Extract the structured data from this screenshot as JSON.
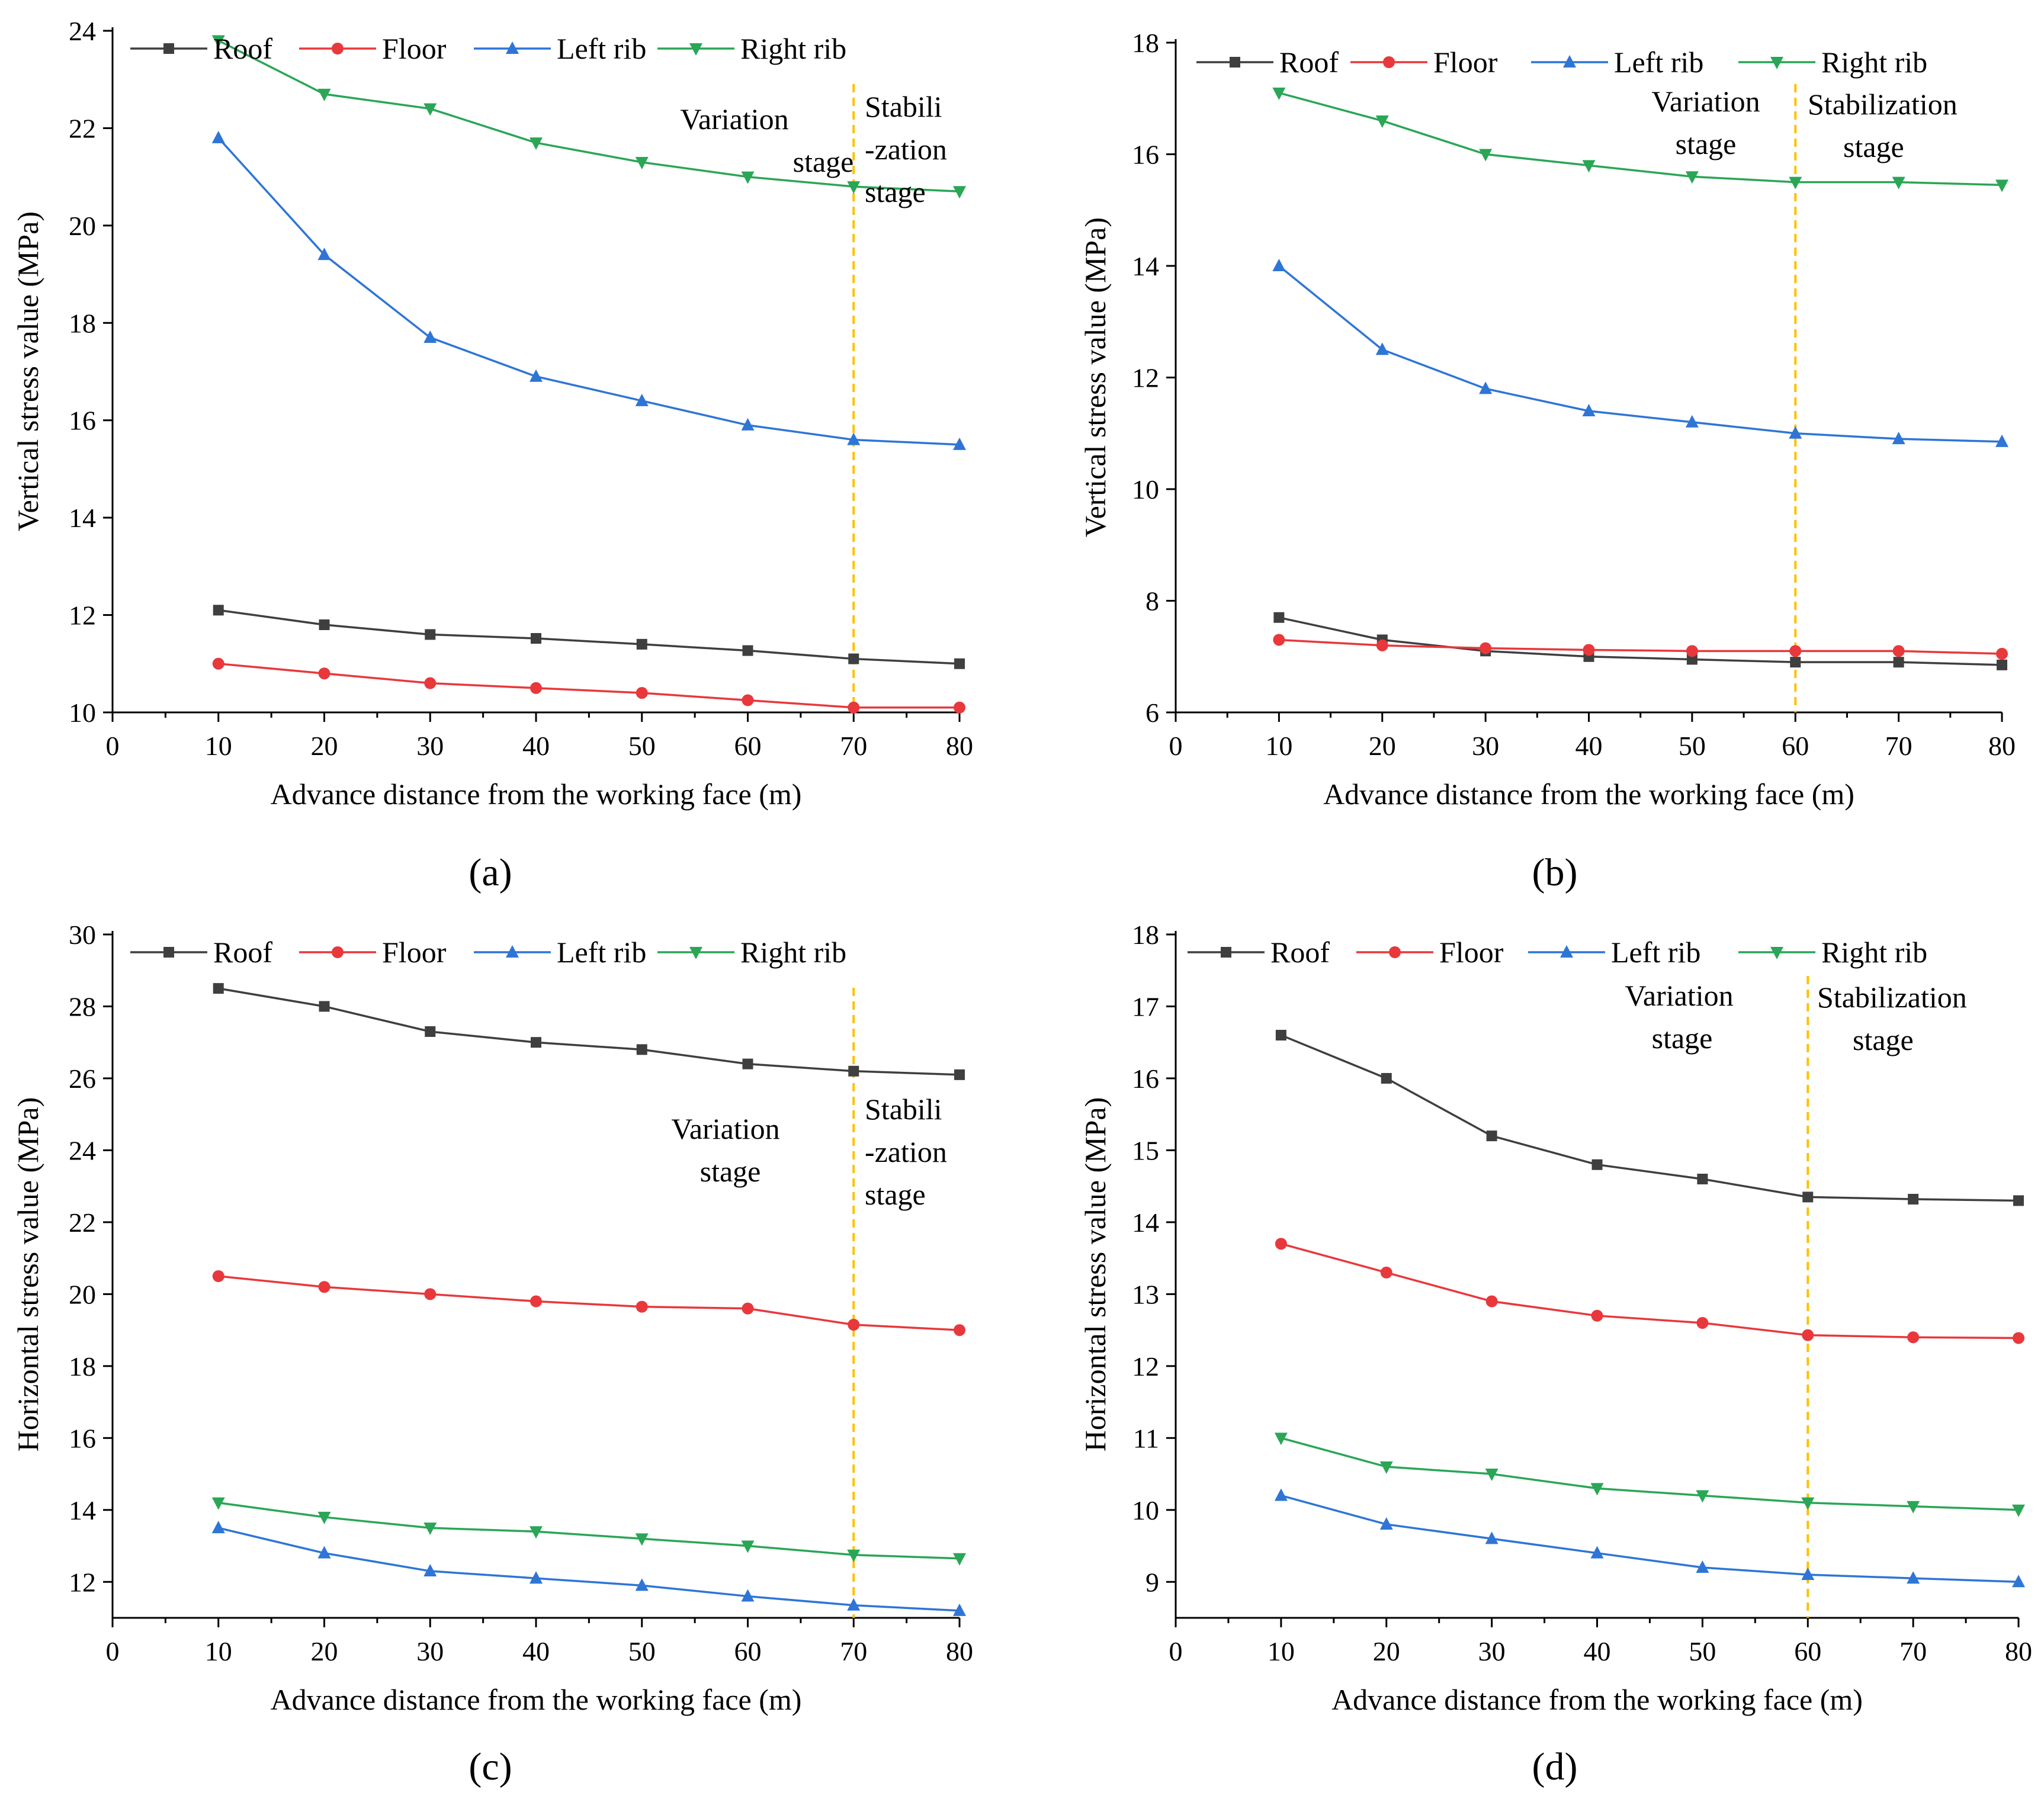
{
  "figure": {
    "series_names": [
      "Roof",
      "Floor",
      "Left rib",
      "Right rib"
    ],
    "series_colors": [
      "#3f3f3f",
      "#e8383c",
      "#2e75d6",
      "#2aa656"
    ],
    "marker_shapes": [
      "square",
      "circle",
      "triangle-up",
      "triangle-down"
    ],
    "divider_color": "#FFC000"
  },
  "chart_data": [
    {
      "panel": "(a)",
      "type": "line",
      "xlabel": "Advance distance from the working face (m)",
      "ylabel": "Vertical stress value (MPa)",
      "xlim": [
        0,
        80
      ],
      "ylim": [
        10,
        24
      ],
      "xticks": [
        0,
        10,
        20,
        30,
        40,
        50,
        60,
        70,
        80
      ],
      "yticks": [
        10,
        12,
        14,
        16,
        18,
        20,
        22,
        24
      ],
      "x": [
        10,
        20,
        30,
        40,
        50,
        60,
        70,
        80
      ],
      "series": [
        {
          "name": "Roof",
          "values": [
            12.1,
            11.8,
            11.6,
            11.52,
            11.4,
            11.27,
            11.1,
            11.0
          ]
        },
        {
          "name": "Floor",
          "values": [
            11.0,
            10.8,
            10.6,
            10.5,
            10.4,
            10.25,
            10.1,
            10.1
          ]
        },
        {
          "name": "Left rib",
          "values": [
            21.8,
            19.4,
            17.7,
            16.9,
            16.4,
            15.9,
            15.6,
            15.5
          ]
        },
        {
          "name": "Right rib",
          "values": [
            23.8,
            22.7,
            22.4,
            21.7,
            21.3,
            21.0,
            20.8,
            20.7
          ]
        }
      ],
      "divider_x": 70,
      "stage_left": [
        "Variation",
        "stage"
      ],
      "stage_right": [
        "Stabili",
        "-zation",
        "stage"
      ]
    },
    {
      "panel": "(b)",
      "type": "line",
      "xlabel": "Advance distance from the working face (m)",
      "ylabel": "Vertical stress value (MPa)",
      "xlim": [
        0,
        80
      ],
      "ylim": [
        6,
        18
      ],
      "xticks": [
        0,
        10,
        20,
        30,
        40,
        50,
        60,
        70,
        80
      ],
      "yticks": [
        6,
        8,
        10,
        12,
        14,
        16,
        18
      ],
      "x": [
        10,
        20,
        30,
        40,
        50,
        60,
        70,
        80
      ],
      "series": [
        {
          "name": "Roof",
          "values": [
            7.7,
            7.3,
            7.1,
            7.0,
            6.95,
            6.9,
            6.9,
            6.85
          ]
        },
        {
          "name": "Floor",
          "values": [
            7.3,
            7.2,
            7.15,
            7.12,
            7.1,
            7.1,
            7.1,
            7.05
          ]
        },
        {
          "name": "Left rib",
          "values": [
            14.0,
            12.5,
            11.8,
            11.4,
            11.2,
            11.0,
            10.9,
            10.85
          ]
        },
        {
          "name": "Right rib",
          "values": [
            17.1,
            16.6,
            16.0,
            15.8,
            15.6,
            15.5,
            15.5,
            15.45
          ]
        }
      ],
      "divider_x": 60,
      "stage_left": [
        "Variation",
        "stage"
      ],
      "stage_right": [
        "Stabilization",
        "stage"
      ]
    },
    {
      "panel": "(c)",
      "type": "line",
      "xlabel": "Advance distance from the working face (m)",
      "ylabel": "Horizontal stress value (MPa)",
      "xlim": [
        0,
        80
      ],
      "ylim": [
        11,
        30
      ],
      "xticks": [
        0,
        10,
        20,
        30,
        40,
        50,
        60,
        70,
        80
      ],
      "yticks": [
        12,
        14,
        16,
        18,
        20,
        22,
        24,
        26,
        28,
        30
      ],
      "x": [
        10,
        20,
        30,
        40,
        50,
        60,
        70,
        80
      ],
      "series": [
        {
          "name": "Roof",
          "values": [
            28.5,
            28.0,
            27.3,
            27.0,
            26.8,
            26.4,
            26.2,
            26.1
          ]
        },
        {
          "name": "Floor",
          "values": [
            20.5,
            20.2,
            20.0,
            19.8,
            19.65,
            19.6,
            19.15,
            19.0
          ]
        },
        {
          "name": "Left rib",
          "values": [
            13.5,
            12.8,
            12.3,
            12.1,
            11.9,
            11.6,
            11.35,
            11.2
          ]
        },
        {
          "name": "Right rib",
          "values": [
            14.2,
            13.8,
            13.5,
            13.4,
            13.2,
            13.0,
            12.75,
            12.65
          ]
        }
      ],
      "divider_x": 70,
      "stage_left": [
        "Variation",
        "stage"
      ],
      "stage_right": [
        "Stabili",
        "-zation",
        "stage"
      ]
    },
    {
      "panel": "(d)",
      "type": "line",
      "xlabel": "Advance distance from the working face (m)",
      "ylabel": "Horizontal stress value (MPa)",
      "xlim": [
        0,
        80
      ],
      "ylim": [
        8.5,
        18
      ],
      "xticks": [
        0,
        10,
        20,
        30,
        40,
        50,
        60,
        70,
        80
      ],
      "yticks": [
        9,
        10,
        11,
        12,
        13,
        14,
        15,
        16,
        17,
        18
      ],
      "x": [
        10,
        20,
        30,
        40,
        50,
        60,
        70,
        80
      ],
      "series": [
        {
          "name": "Roof",
          "values": [
            16.6,
            16.0,
            15.2,
            14.8,
            14.6,
            14.35,
            14.32,
            14.3
          ]
        },
        {
          "name": "Floor",
          "values": [
            13.7,
            13.3,
            12.9,
            12.7,
            12.6,
            12.43,
            12.4,
            12.39
          ]
        },
        {
          "name": "Left rib",
          "values": [
            10.2,
            9.8,
            9.6,
            9.4,
            9.2,
            9.1,
            9.05,
            9.0
          ]
        },
        {
          "name": "Right rib",
          "values": [
            11.0,
            10.6,
            10.5,
            10.3,
            10.2,
            10.1,
            10.05,
            10.0
          ]
        }
      ],
      "divider_x": 60,
      "stage_left": [
        "Variation",
        "stage"
      ],
      "stage_right": [
        "Stabilization",
        "stage"
      ]
    }
  ]
}
